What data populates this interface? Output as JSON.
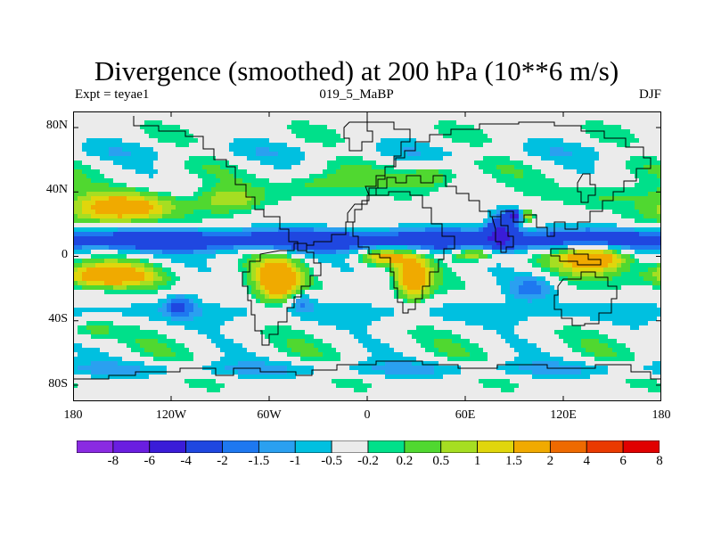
{
  "title": "Divergence (smoothed) at 200 hPa (10**6 m/s)",
  "subtitle_left": "Expt = teyae1",
  "subtitle_center": "019_5_MaBP",
  "subtitle_right": "DJF",
  "lat_labels": [
    "80N",
    "40N",
    "0",
    "40S",
    "80S"
  ],
  "lon_labels": [
    "180",
    "120W",
    "60W",
    "0",
    "60E",
    "120E",
    "180"
  ],
  "colorbar": {
    "levels": [
      "-8",
      "-6",
      "-4",
      "-2",
      "-1.5",
      "-1",
      "-0.5",
      "-0.2",
      "0.2",
      "0.5",
      "1",
      "1.5",
      "2",
      "4",
      "6",
      "8"
    ],
    "colors": [
      "#8a2be2",
      "#6a1ee0",
      "#3a1cd8",
      "#1f47e0",
      "#1e78f0",
      "#2aa0f0",
      "#00c0e0",
      "#ebebeb",
      "#00e08a",
      "#50d830",
      "#a6de22",
      "#e0d60c",
      "#f0aa00",
      "#ee6a00",
      "#ea3a00",
      "#e00000"
    ]
  },
  "chart_data": {
    "type": "heatmap",
    "title": "Divergence (smoothed) at 200 hPa (10**6 m/s)",
    "variable": "Divergence (smoothed) at 200 hPa",
    "units": "10**6 m/s",
    "experiment": "teyae1",
    "period": "019_5_MaBP",
    "season": "DJF",
    "xlim": [
      -180,
      180
    ],
    "ylim": [
      -90,
      90
    ],
    "x_ticks": [
      -180,
      -120,
      -60,
      0,
      60,
      120,
      180
    ],
    "y_ticks": [
      80,
      40,
      0,
      -40,
      -80
    ],
    "contour_levels": [
      -8,
      -6,
      -4,
      -2,
      -1.5,
      -1,
      -0.5,
      -0.2,
      0.2,
      0.5,
      1,
      1.5,
      2,
      4,
      6,
      8
    ],
    "features": [
      {
        "type": "band",
        "lat": 10,
        "lon": [
          -180,
          180
        ],
        "value": -3,
        "hw": 7
      },
      {
        "type": "band",
        "lat": -35,
        "lon": [
          -180,
          180
        ],
        "value": -0.7,
        "hw": 8
      },
      {
        "type": "band",
        "lat": 65,
        "lon": [
          -180,
          180
        ],
        "value": -0.5,
        "hw": 6
      },
      {
        "type": "band",
        "lat": -70,
        "lon": [
          -160,
          140
        ],
        "value": -0.9,
        "hw": 5
      },
      {
        "type": "blob",
        "lon": -150,
        "lat": 30,
        "value": 3.0,
        "rx": 30,
        "ry": 9
      },
      {
        "type": "blob",
        "lon": -160,
        "lat": -12,
        "value": 3.2,
        "rx": 28,
        "ry": 7
      },
      {
        "type": "blob",
        "lon": -115,
        "lat": -30,
        "value": -1.8,
        "rx": 10,
        "ry": 7
      },
      {
        "type": "blob",
        "lon": -85,
        "lat": 35,
        "value": 1.4,
        "rx": 18,
        "ry": 7
      },
      {
        "type": "blob",
        "lon": -55,
        "lat": -15,
        "value": 3.0,
        "rx": 14,
        "ry": 14
      },
      {
        "type": "blob",
        "lon": -40,
        "lat": -28,
        "value": -1.5,
        "rx": 8,
        "ry": 6
      },
      {
        "type": "blob",
        "lon": -30,
        "lat": 45,
        "value": 1.0,
        "rx": 25,
        "ry": 8
      },
      {
        "type": "blob",
        "lon": 10,
        "lat": 0,
        "value": 2.2,
        "rx": 15,
        "ry": 5
      },
      {
        "type": "blob",
        "lon": 28,
        "lat": -14,
        "value": 3.0,
        "rx": 10,
        "ry": 13
      },
      {
        "type": "blob",
        "lon": 40,
        "lat": 50,
        "value": 1.2,
        "rx": 18,
        "ry": 8
      },
      {
        "type": "blob",
        "lon": 65,
        "lat": 2,
        "value": 2.5,
        "rx": 14,
        "ry": 5
      },
      {
        "type": "blob",
        "lon": 82,
        "lat": 17,
        "value": -3.5,
        "rx": 9,
        "ry": 10
      },
      {
        "type": "blob",
        "lon": 90,
        "lat": 25,
        "value": -4.5,
        "rx": 5,
        "ry": 4
      },
      {
        "type": "blob",
        "lon": 97,
        "lat": 25,
        "value": 1.8,
        "rx": 4,
        "ry": 4
      },
      {
        "type": "blob",
        "lon": 100,
        "lat": -20,
        "value": -1.6,
        "rx": 14,
        "ry": 8
      },
      {
        "type": "blob",
        "lon": 140,
        "lat": 0,
        "value": 3.5,
        "rx": 22,
        "ry": 9
      },
      {
        "type": "blob",
        "lon": 150,
        "lat": 38,
        "value": 0.7,
        "rx": 25,
        "ry": 8
      },
      {
        "type": "blob",
        "lon": -170,
        "lat": -45,
        "value": 0.8,
        "rx": 15,
        "ry": 7
      }
    ]
  }
}
